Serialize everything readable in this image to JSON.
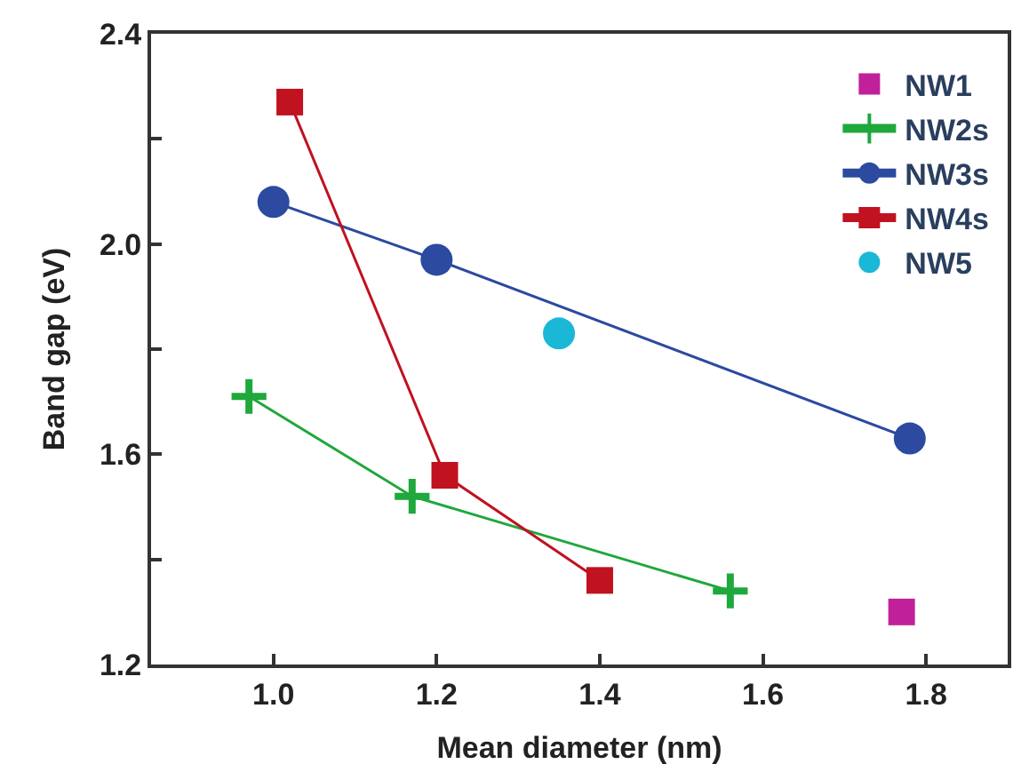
{
  "chart_data": {
    "type": "scatter",
    "xlabel": "Mean diameter (nm)",
    "ylabel": "Band gap (eV)",
    "xlim": [
      0.85,
      1.9
    ],
    "xticks": [
      {
        "value": 1.0,
        "label": "1.0"
      },
      1.2,
      1.4,
      1.6,
      1.8
    ],
    "ylim": [
      1.2,
      2.4
    ],
    "yticks": [
      1.2,
      {
        "value": 1.4,
        "label": null
      },
      1.6,
      {
        "value": 1.8,
        "label": null
      },
      {
        "value": 2.0,
        "label": "2.0"
      },
      {
        "value": 2.2,
        "label": null
      },
      2.4
    ],
    "legend": "top right",
    "series": [
      {
        "name": "NW1",
        "marker": "square",
        "color": "#c0219a",
        "x": [
          1.77
        ],
        "values": [
          1.3
        ]
      },
      {
        "name": "NW2s",
        "type": "line",
        "marker": "cross",
        "color": "#1fa83c",
        "x": [
          0.97,
          1.17,
          1.56
        ],
        "values": [
          1.71,
          1.52,
          1.34
        ]
      },
      {
        "name": "NW3s",
        "type": "line",
        "marker": "circle",
        "color": "#2b4aa0",
        "x": [
          1.0,
          1.2,
          1.78
        ],
        "values": [
          2.08,
          1.97,
          1.63
        ]
      },
      {
        "name": "NW4s",
        "type": "line",
        "marker": "square",
        "color": "#c0121f",
        "x": [
          1.02,
          1.21,
          1.4
        ],
        "values": [
          2.27,
          1.56,
          1.36
        ]
      },
      {
        "name": "NW5",
        "marker": "circle",
        "color": "#1ab8d6",
        "x": [
          1.35
        ],
        "values": [
          1.83
        ]
      }
    ]
  }
}
